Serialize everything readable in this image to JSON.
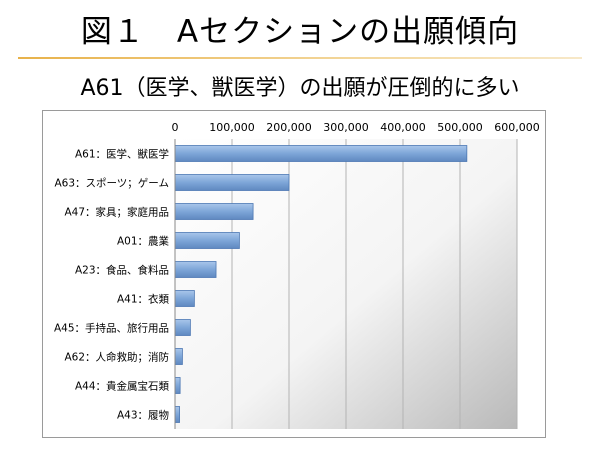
{
  "slide": {
    "title": "図１　Aセクションの出願傾向",
    "subtitle": "A61（医学、獣医学）の出願が圧倒的に多い"
  },
  "chart_data": {
    "type": "bar",
    "orientation": "horizontal",
    "title": "",
    "xlabel": "",
    "ylabel": "",
    "xlim": [
      0,
      600000
    ],
    "x_ticks": [
      0,
      100000,
      200000,
      300000,
      400000,
      500000,
      600000
    ],
    "x_tick_labels": [
      "0",
      "100,000",
      "200,000",
      "300,000",
      "400,000",
      "500,000",
      "600,000"
    ],
    "categories": [
      "A61：医学、獣医学",
      "A63：スポーツ；ゲーム",
      "A47：家具；家庭用品",
      "A01：農業",
      "A23：食品、食料品",
      "A41：衣類",
      "A45：手持品、旅行用品",
      "A62：人命救助；消防",
      "A44：貴金属宝石類",
      "A43：履物"
    ],
    "values": [
      512000,
      200000,
      137000,
      113000,
      72000,
      34000,
      27000,
      13000,
      9000,
      8000
    ],
    "grid": true,
    "legend": "none",
    "bar_color": "#7ea6d8"
  }
}
